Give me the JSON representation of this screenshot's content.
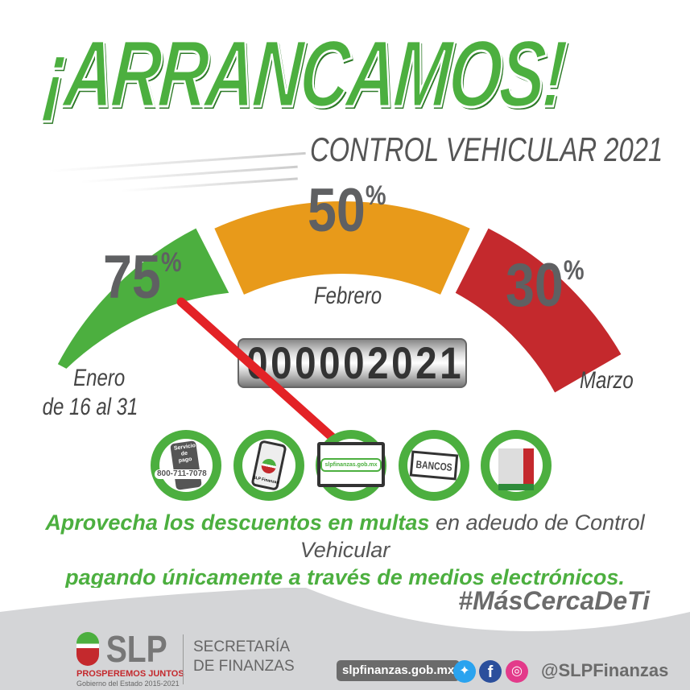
{
  "header": {
    "title": "¡ARRANCAMOS!",
    "subtitle": "CONTROL VEHICULAR 2021"
  },
  "gauge": {
    "segments": [
      {
        "percent": "75",
        "sign": "%",
        "month": "Enero",
        "month_detail": "de 16 al 31",
        "color": "#4caf3f"
      },
      {
        "percent": "50",
        "sign": "%",
        "month": "Febrero",
        "color": "#e89a1a"
      },
      {
        "percent": "30",
        "sign": "%",
        "month": "Marzo",
        "color": "#c4292d"
      }
    ],
    "needle_color": "#e32226",
    "odometer": [
      "0",
      "0",
      "0",
      "0",
      "0",
      "2",
      "0",
      "2",
      "1"
    ]
  },
  "channels": [
    {
      "icon": "phone-service-icon",
      "title": "Servicio de pago",
      "phone": "800-711-7078"
    },
    {
      "icon": "mobile-app-icon",
      "label": "SLP Finanzas"
    },
    {
      "icon": "computer-website-icon",
      "label": "slpfinanzas.gob.mx"
    },
    {
      "icon": "bank-icon",
      "label": "BANCOS"
    },
    {
      "icon": "kiosk-icon"
    }
  ],
  "message": {
    "line1_bold": "Aprovecha los descuentos en multas",
    "line1_rest": " en adeudo de Control Vehicular",
    "line2": "pagando únicamente a través de medios electrónicos."
  },
  "hashtag": "#MásCercaDeTi",
  "footer": {
    "logo_text": "SLP",
    "slogan": "PROSPEREMOS JUNTOS",
    "government": "Gobierno del Estado 2015-2021",
    "secretaria_line1": "SECRETARÍA",
    "secretaria_line2": "DE FINANZAS",
    "website": "slpfinanzas.gob.mx",
    "handle": "@SLPFinanzas"
  },
  "colors": {
    "green": "#4caf3f",
    "orange": "#e89a1a",
    "red": "#c4292d",
    "gray": "#5f6062"
  }
}
